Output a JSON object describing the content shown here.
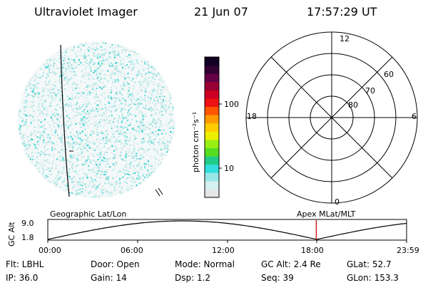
{
  "header": {
    "title": "Ultraviolet Imager",
    "date": "21 Jun 07",
    "time": "17:57:29 UT"
  },
  "colorbar": {
    "unit_label": "photon cm⁻²s⁻¹",
    "ticks": [
      "100",
      "10"
    ],
    "colors": [
      "#e6e6e6",
      "#d4f0f0",
      "#99e6e6",
      "#33dddd",
      "#22cc88",
      "#55dd22",
      "#99ee11",
      "#eeee00",
      "#ffcc00",
      "#ff9900",
      "#ff5500",
      "#ee1111",
      "#cc0022",
      "#990033",
      "#660044",
      "#330033",
      "#110022"
    ]
  },
  "polar_plot": {
    "hour_labels": {
      "top": "12",
      "left": "18",
      "right": "6",
      "bottom": "0"
    },
    "lat_labels": [
      "60",
      "70",
      "80"
    ]
  },
  "altitude_plot": {
    "left_title": "Geographic Lat/Lon",
    "right_title": "Apex  MLat/MLT",
    "y_axis_label": "GC Alt",
    "y_ticks": [
      "9.0",
      "1.8"
    ],
    "x_ticks": [
      "00:00",
      "06:00",
      "12:00",
      "18:00",
      "23:59"
    ],
    "marker_time_hours": 17.958,
    "marker_color": "#cc2222"
  },
  "info": {
    "row1": {
      "filter": "Flt: LBHL",
      "door": "Door: Open",
      "mode": "Mode: Normal",
      "gc_alt": "GC Alt: 2.4 Re",
      "glat": "GLat:  52.7"
    },
    "row2": {
      "ip": "IP: 36.0",
      "gain": "Gain: 14",
      "dsp": "Dsp:     1.2",
      "seq": "Seq: 39",
      "glon": "GLon: 153.3"
    }
  }
}
